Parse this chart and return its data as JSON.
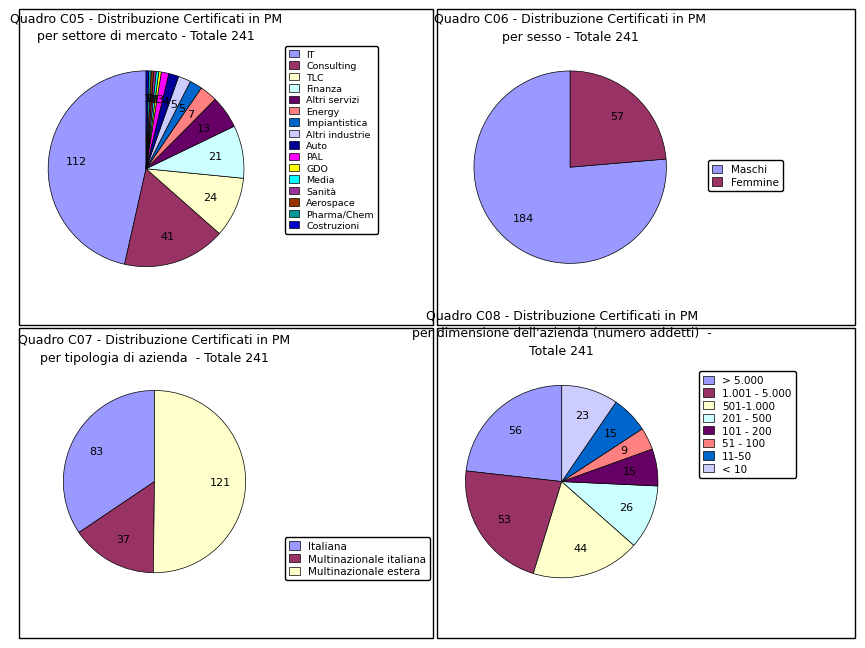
{
  "c05": {
    "title": "Quadro C05 - Distribuzione Certificati in PM\nper settore di mercato - Totale 241",
    "labels": [
      "IT",
      "Consulting",
      "TLC",
      "Finanza",
      "Altri servizi",
      "Energy",
      "Impiantistica",
      "Altri industrie",
      "Auto",
      "PAL",
      "GDO",
      "Media",
      "Sanità",
      "Aerospace",
      "Pharma/Chem",
      "Costruzioni"
    ],
    "values": [
      112,
      41,
      24,
      21,
      13,
      7,
      5,
      5,
      4,
      3,
      1,
      1,
      1,
      1,
      1,
      1
    ],
    "colors": [
      "#9999FF",
      "#993366",
      "#FFFFCC",
      "#CCFFFF",
      "#660066",
      "#FF8080",
      "#0066CC",
      "#CCCCFF",
      "#000099",
      "#FF00FF",
      "#FFFF00",
      "#00FFFF",
      "#993399",
      "#993300",
      "#009999",
      "#0000CC"
    ]
  },
  "c06": {
    "title": "Quadro C06 - Distribuzione Certificati in PM\nper sesso - Totale 241",
    "labels": [
      "Maschi",
      "Femmine"
    ],
    "values": [
      184,
      57
    ],
    "colors": [
      "#9999FF",
      "#993366"
    ]
  },
  "c07": {
    "title": "Quadro C07 - Distribuzione Certificati in PM\nper tipologia di azienda  - Totale 241",
    "labels": [
      "Italiana",
      "Multinazionale italiana",
      "Multinazionale estera"
    ],
    "values": [
      83,
      37,
      121
    ],
    "colors": [
      "#9999FF",
      "#993366",
      "#FFFFCC"
    ]
  },
  "c08": {
    "title": "Quadro C08 - Distribuzione Certificati in PM\nper dimensione dell'azienda (numero addetti)  -\nTotale 241",
    "labels": [
      "> 5.000",
      "1.001 - 5.000",
      "501-1.000",
      "201 - 500",
      "101 - 200",
      "51 - 100",
      "11-50",
      "< 10"
    ],
    "values": [
      56,
      53,
      44,
      26,
      15,
      9,
      15,
      23
    ],
    "colors": [
      "#9999FF",
      "#993366",
      "#FFFFCC",
      "#CCFFFF",
      "#660066",
      "#FF8080",
      "#0066CC",
      "#CCCCFF"
    ]
  },
  "bg_color": "#FFFFFF",
  "title_fontsize": 9,
  "label_fontsize": 8,
  "legend_fontsize": 7.5
}
